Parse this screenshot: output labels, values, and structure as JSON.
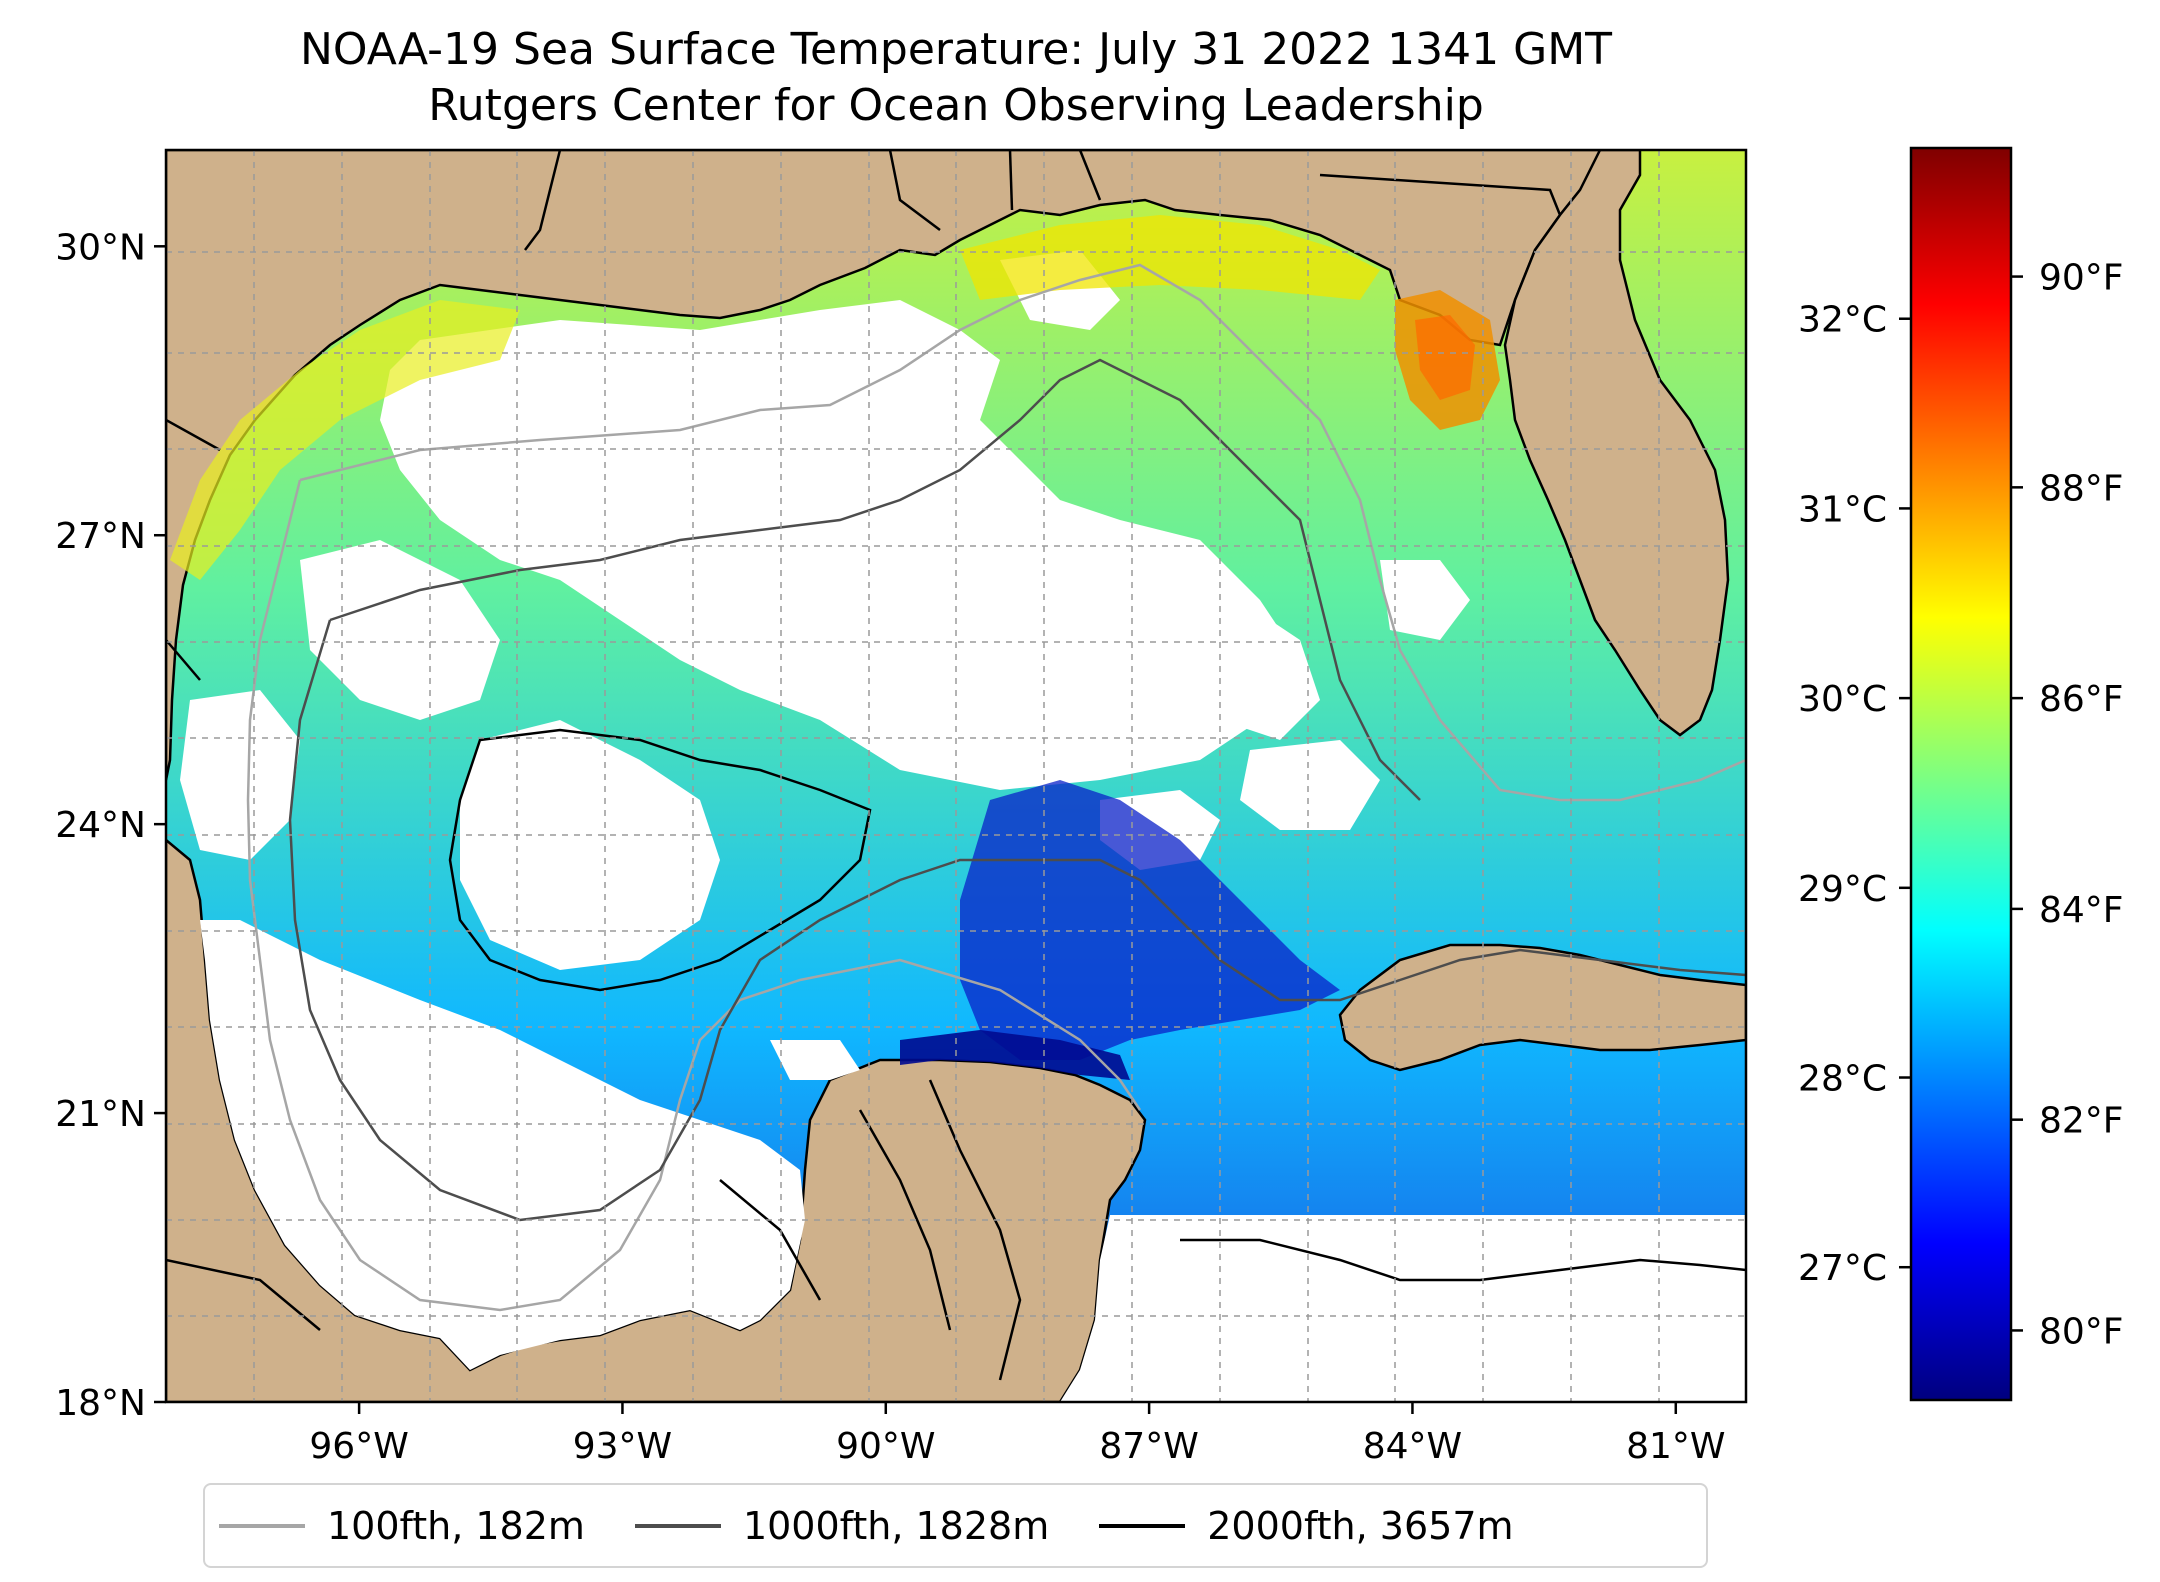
{
  "title": {
    "line1": "NOAA-19 Sea Surface Temperature: July 31 2022 1341 GMT",
    "line2": "Rutgers Center for Ocean Observing Leadership"
  },
  "map": {
    "lat_range": [
      18,
      31
    ],
    "lon_range": [
      -98.2,
      -80.2
    ],
    "lat_ticks": [
      {
        "value": 18,
        "label": "18°N"
      },
      {
        "value": 21,
        "label": "21°N"
      },
      {
        "value": 24,
        "label": "24°N"
      },
      {
        "value": 27,
        "label": "27°N"
      },
      {
        "value": 30,
        "label": "30°N"
      }
    ],
    "lon_ticks": [
      {
        "value": -96,
        "label": "96°W"
      },
      {
        "value": -93,
        "label": "93°W"
      },
      {
        "value": -90,
        "label": "90°W"
      },
      {
        "value": -87,
        "label": "87°W"
      },
      {
        "value": -84,
        "label": "84°W"
      },
      {
        "value": -81,
        "label": "81°W"
      }
    ],
    "gridlines": true,
    "land_color": "#cfb18b",
    "cloud_color": "#ffffff",
    "ocean_fill_colors": [
      "#5a8cf0",
      "#1aa0ff",
      "#00d6ff",
      "#4ff0a0",
      "#b0f040",
      "#f0e000"
    ],
    "warm_patch_color": "#f08c00",
    "deep_cold_color": "#000a96",
    "colormap": "jet"
  },
  "colorbar": {
    "range_c": [
      26.3,
      32.9
    ],
    "celsius_ticks": [
      {
        "value": 27,
        "label": "27°C"
      },
      {
        "value": 28,
        "label": "28°C"
      },
      {
        "value": 29,
        "label": "29°C"
      },
      {
        "value": 30,
        "label": "30°C"
      },
      {
        "value": 31,
        "label": "31°C"
      },
      {
        "value": 32,
        "label": "32°C"
      }
    ],
    "fahrenheit_ticks": [
      {
        "value": 80,
        "label": "80°F"
      },
      {
        "value": 82,
        "label": "82°F"
      },
      {
        "value": 84,
        "label": "84°F"
      },
      {
        "value": 86,
        "label": "86°F"
      },
      {
        "value": 88,
        "label": "88°F"
      },
      {
        "value": 90,
        "label": "90°F"
      }
    ],
    "jet_stops": [
      "#00007f",
      "#0000ff",
      "#007fff",
      "#00ffff",
      "#7fff7f",
      "#ffff00",
      "#ff7f00",
      "#ff0000",
      "#7f0000"
    ]
  },
  "legend": {
    "items": [
      {
        "label": "100fth, 182m",
        "color": "#a6a6a6"
      },
      {
        "label": "1000fth, 1828m",
        "color": "#4d4d4d"
      },
      {
        "label": "2000fth, 3657m",
        "color": "#000000"
      }
    ]
  }
}
